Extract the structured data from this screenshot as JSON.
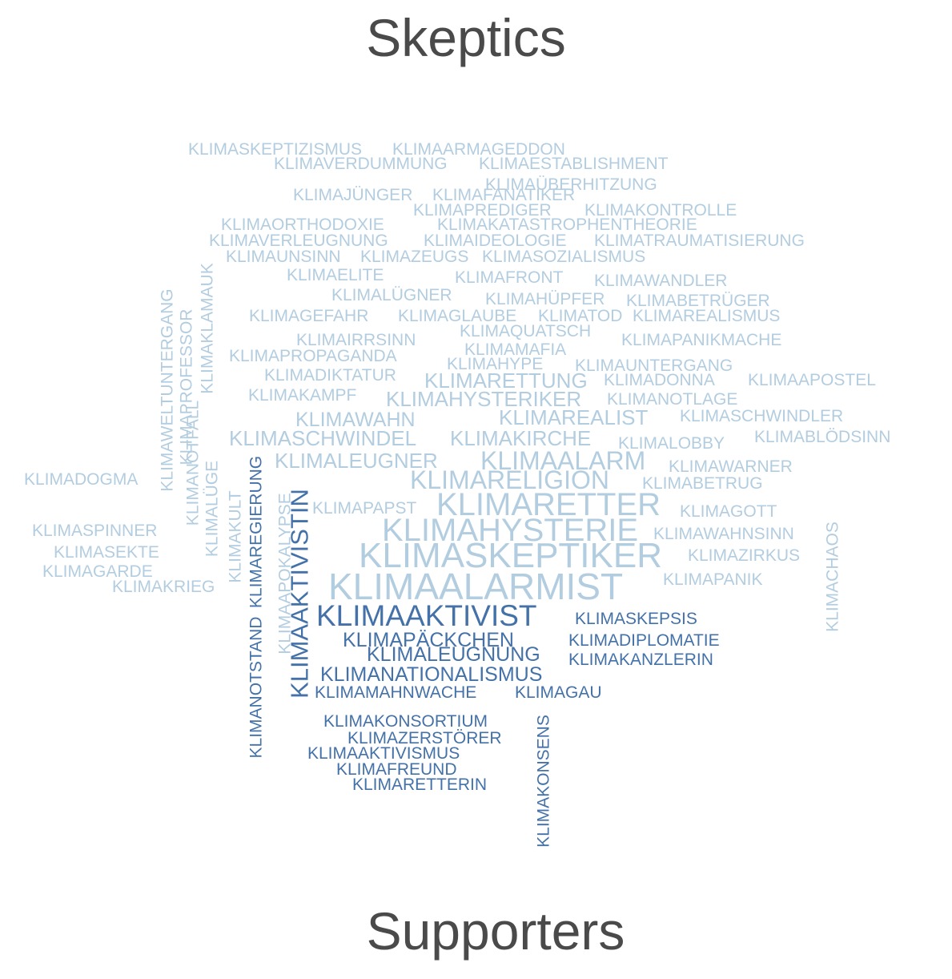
{
  "titles": {
    "top": "Skeptics",
    "bottom": "Supporters"
  },
  "colors": {
    "skeptic": "#b3cde0",
    "supporter": "#4472a8",
    "heading": "#4a4a4a"
  },
  "skeptic_words": [
    "KLIMASKEPTIZISMUS",
    "KLIMAARMAGEDDON",
    "KLIMAVERDUMMUNG",
    "KLIMAESTABLISHMENT",
    "KLIMAÜBERHITZUNG",
    "KLIMAJÜNGER",
    "KLIMAFANATIKER",
    "KLIMAPREDIGER",
    "KLIMAKONTROLLE",
    "KLIMAORTHODOXIE",
    "KLIMAKATASTROPHENTHEORIE",
    "KLIMAVERLEUGNUNG",
    "KLIMAIDEOLOGIE",
    "KLIMATRAUMATISIERUNG",
    "KLIMAUNSINN",
    "KLIMAZEUGS",
    "KLIMASOZIALISMUS",
    "KLIMAELITE",
    "KLIMAFRONT",
    "KLIMAWANDLER",
    "KLIMALÜGNER",
    "KLIMAHÜPFER",
    "KLIMABETRÜGER",
    "KLIMAGEFAHR",
    "KLIMAGLAUBE",
    "KLIMATOD",
    "KLIMAREALISMUS",
    "KLIMAIRRSINN",
    "KLIMAQUATSCH",
    "KLIMAPANIKMACHE",
    "KLIMAPROPAGANDA",
    "KLIMAMAFIA",
    "KLIMAHYPE",
    "KLIMAUNTERGANG",
    "KLIMADIKTATUR",
    "KLIMARETTUNG",
    "KLIMADONNA",
    "KLIMAAPOSTEL",
    "KLIMAKAMPF",
    "KLIMAHYSTERIKER",
    "KLIMANOTLAGE",
    "KLIMAWAHN",
    "KLIMAREALIST",
    "KLIMASCHWINDLER",
    "KLIMASCHWINDEL",
    "KLIMAKIRCHE",
    "KLIMALOBBY",
    "KLIMABLÖDSINN",
    "KLIMALEUGNER",
    "KLIMAALARM",
    "KLIMAWARNER",
    "KLIMADOGMA",
    "KLIMARELIGION",
    "KLIMABETRUG",
    "KLIMAPAPST",
    "KLIMARETTER",
    "KLIMAGOTT",
    "KLIMASPINNER",
    "KLIMAHYSTERIE",
    "KLIMAWAHNSINN",
    "KLIMASEKTE",
    "KLIMASKEPTIKER",
    "KLIMAZIRKUS",
    "KLIMAGARDE",
    "KLIMAALARMIST",
    "KLIMAPANIK",
    "KLIMAKRIEG",
    "KLIMAWELTUNTERGANG",
    "KLIMAPROFESSOR",
    "KLIMAKLAMAUK",
    "KLIMANOTFALL",
    "KLIMALÜGE",
    "KLIMAKULT",
    "KLIMAAPOKALYPSE",
    "KLIMACHAOS"
  ],
  "supporter_words": [
    "KLIMAAKTIVIST",
    "KLIMASKEPSIS",
    "KLIMAPÄCKCHEN",
    "KLIMADIPLOMATIE",
    "KLIMALEUGNUNG",
    "KLIMAKANZLERIN",
    "KLIMANATIONALISMUS",
    "KLIMAMAHNWACHE",
    "KLIMAGAU",
    "KLIMAKONSORTIUM",
    "KLIMAZERSTÖRER",
    "KLIMAAKTIVISMUS",
    "KLIMAFREUND",
    "KLIMARETTERIN",
    "KLIMAREGIERUNG",
    "KLIMANOTSTAND",
    "KLIMAAKTIVISTIN",
    "KLIMAKONSENS"
  ]
}
